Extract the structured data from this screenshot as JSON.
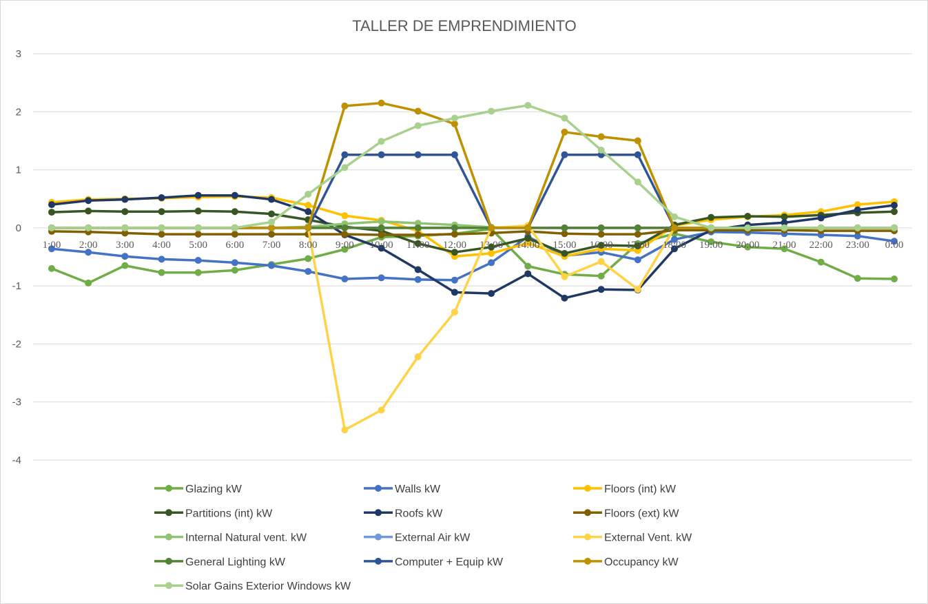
{
  "chart_data": {
    "type": "line",
    "title": "TALLER DE EMPRENDIMIENTO",
    "xlabel": "",
    "ylabel": "",
    "ylim": [
      -4,
      3
    ],
    "yticks": [
      3,
      2,
      1,
      0,
      -1,
      -2,
      -3,
      -4
    ],
    "grid": true,
    "legend_position": "bottom",
    "categories": [
      "1:00",
      "2:00",
      "3:00",
      "4:00",
      "5:00",
      "6:00",
      "7:00",
      "8:00",
      "9:00",
      "10:00",
      "11:00",
      "12:00",
      "13:00",
      "14:00",
      "15:00",
      "16:00",
      "17:00",
      "18:00",
      "19:00",
      "20:00",
      "21:00",
      "22:00",
      "23:00",
      "0:00"
    ],
    "series": [
      {
        "name": "Glazing kW",
        "color": "#70ad47",
        "values": [
          -0.7,
          -0.95,
          -0.65,
          -0.77,
          -0.77,
          -0.73,
          -0.63,
          -0.53,
          -0.37,
          -0.16,
          -0.14,
          -0.1,
          -0.02,
          -0.66,
          -0.8,
          -0.83,
          -0.27,
          -0.1,
          -0.24,
          -0.33,
          -0.36,
          -0.59,
          -0.87,
          -0.88
        ]
      },
      {
        "name": "Walls kW",
        "color": "#4472c4",
        "values": [
          -0.36,
          -0.42,
          -0.49,
          -0.54,
          -0.56,
          -0.6,
          -0.65,
          -0.75,
          -0.88,
          -0.86,
          -0.89,
          -0.9,
          -0.6,
          -0.15,
          -0.48,
          -0.42,
          -0.55,
          -0.2,
          -0.07,
          -0.08,
          -0.1,
          -0.12,
          -0.14,
          -0.23
        ]
      },
      {
        "name": "Floors (int) kW",
        "color": "#ffc000",
        "values": [
          0.44,
          0.49,
          0.5,
          0.51,
          0.53,
          0.54,
          0.52,
          0.39,
          0.21,
          0.13,
          -0.05,
          -0.49,
          -0.44,
          -0.26,
          -0.49,
          -0.36,
          -0.39,
          0.04,
          0.14,
          0.19,
          0.22,
          0.28,
          0.4,
          0.45
        ]
      },
      {
        "name": "Partitions (int) kW",
        "color": "#375623",
        "values": [
          0.27,
          0.29,
          0.28,
          0.28,
          0.29,
          0.28,
          0.24,
          0.14,
          0.02,
          -0.05,
          -0.27,
          -0.42,
          -0.33,
          -0.18,
          -0.44,
          -0.3,
          -0.31,
          0.05,
          0.18,
          0.2,
          0.19,
          0.22,
          0.26,
          0.28
        ]
      },
      {
        "name": "Roofs kW",
        "color": "#203864",
        "values": [
          0.4,
          0.47,
          0.49,
          0.52,
          0.56,
          0.56,
          0.49,
          0.28,
          -0.12,
          -0.35,
          -0.72,
          -1.11,
          -1.13,
          -0.79,
          -1.21,
          -1.06,
          -1.07,
          -0.36,
          -0.04,
          0.05,
          0.09,
          0.17,
          0.31,
          0.39
        ]
      },
      {
        "name": "Floors (ext) kW",
        "color": "#806000",
        "values": [
          -0.06,
          -0.07,
          -0.09,
          -0.11,
          -0.11,
          -0.11,
          -0.11,
          -0.11,
          -0.11,
          -0.12,
          -0.12,
          -0.11,
          -0.09,
          -0.06,
          -0.1,
          -0.11,
          -0.11,
          -0.04,
          -0.04,
          -0.04,
          -0.04,
          -0.05,
          -0.05,
          -0.05
        ]
      },
      {
        "name": "Internal Natural vent. kW",
        "color": "#8fc370",
        "values": [
          0.0,
          0.0,
          0.0,
          0.0,
          0.0,
          0.0,
          0.0,
          0.02,
          0.07,
          0.11,
          0.08,
          0.05,
          0.01,
          0.0,
          0.0,
          0.0,
          0.0,
          0.0,
          0.0,
          0.0,
          0.0,
          0.0,
          0.0,
          0.0
        ]
      },
      {
        "name": "External Air kW",
        "color": "#6f9ad8",
        "values": [
          0.0,
          0.0,
          0.0,
          0.0,
          0.0,
          0.0,
          0.0,
          0.0,
          0.0,
          0.0,
          0.0,
          0.0,
          0.0,
          0.0,
          0.0,
          0.0,
          0.0,
          0.0,
          0.0,
          0.0,
          0.0,
          0.0,
          0.0,
          0.0
        ]
      },
      {
        "name": "External Vent. kW",
        "color": "#ffd347",
        "values": [
          0.0,
          0.0,
          0.0,
          0.0,
          0.0,
          0.0,
          0.0,
          0.0,
          -3.48,
          -3.14,
          -2.22,
          -1.45,
          0.0,
          0.04,
          -0.84,
          -0.58,
          -1.06,
          0.0,
          0.0,
          0.0,
          0.0,
          0.0,
          0.0,
          0.0
        ]
      },
      {
        "name": "General Lighting kW",
        "color": "#548235",
        "values": [
          0.0,
          0.0,
          0.0,
          0.0,
          0.0,
          0.0,
          0.0,
          0.0,
          0.0,
          0.0,
          0.0,
          0.0,
          0.0,
          0.0,
          0.0,
          0.0,
          0.0,
          0.0,
          0.0,
          0.0,
          0.0,
          0.0,
          0.0,
          0.0
        ]
      },
      {
        "name": "Computer + Equip kW",
        "color": "#2f5597",
        "values": [
          0.0,
          0.0,
          0.0,
          0.0,
          0.0,
          0.0,
          0.0,
          0.0,
          1.26,
          1.26,
          1.26,
          1.26,
          0.0,
          0.0,
          1.26,
          1.26,
          1.26,
          0.0,
          0.0,
          0.0,
          0.0,
          0.0,
          0.0,
          0.0
        ]
      },
      {
        "name": "Occupancy kW",
        "color": "#bf9000",
        "values": [
          0.0,
          0.0,
          0.0,
          0.0,
          0.0,
          0.0,
          0.0,
          0.0,
          2.1,
          2.15,
          2.01,
          1.79,
          0.0,
          0.0,
          1.65,
          1.57,
          1.5,
          0.0,
          0.0,
          0.0,
          0.0,
          0.0,
          0.0,
          0.0
        ]
      },
      {
        "name": "Solar Gains Exterior Windows kW",
        "color": "#a9d18e",
        "values": [
          0.0,
          0.0,
          0.0,
          0.0,
          0.0,
          0.0,
          0.1,
          0.58,
          1.04,
          1.49,
          1.76,
          1.89,
          2.01,
          2.11,
          1.89,
          1.34,
          0.79,
          0.19,
          0.0,
          0.0,
          0.0,
          0.0,
          0.0,
          0.0
        ]
      }
    ]
  }
}
